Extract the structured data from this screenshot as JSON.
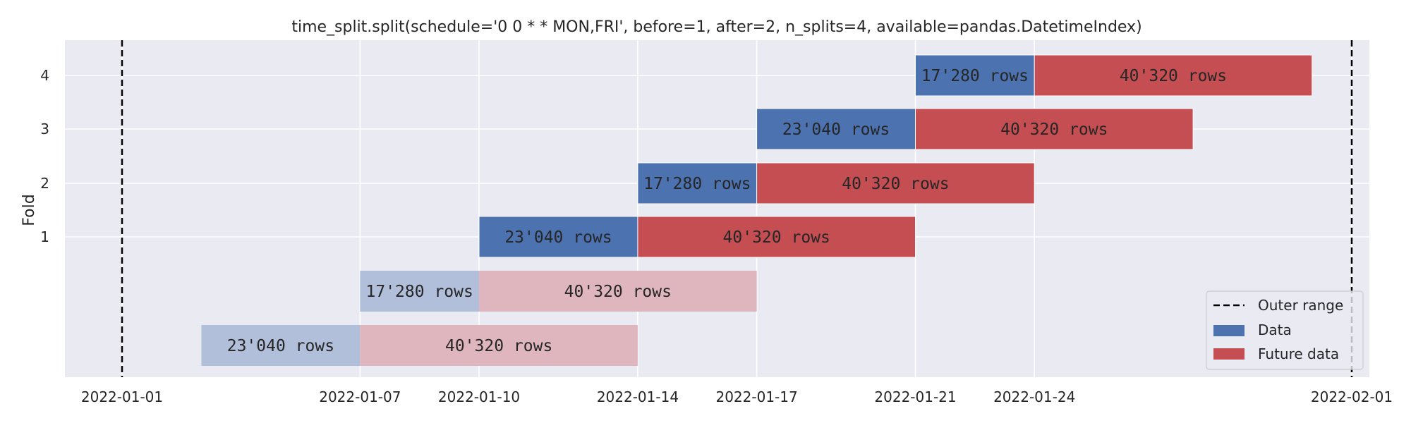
{
  "chart_data": {
    "type": "bar",
    "orientation": "horizontal-timeline",
    "title": "time_split.split(schedule='0 0 * * MON,FRI', before=1, after=2, n_splits=4, available=pandas.DatetimeIndex)",
    "xlabel": "",
    "ylabel": "Fold",
    "x_ticks": [
      "2022-01-01",
      "2022-01-07",
      "2022-01-10",
      "2022-01-14",
      "2022-01-17",
      "2022-01-21",
      "2022-01-24",
      "2022-02-01"
    ],
    "y_ticks": [
      "1",
      "2",
      "3",
      "4"
    ],
    "outer_range": [
      "2022-01-01",
      "2022-02-01"
    ],
    "rows": [
      {
        "fold": "",
        "faded": true,
        "data": {
          "start": "2022-01-03",
          "end": "2022-01-07",
          "label": "23'040 rows"
        },
        "future": {
          "start": "2022-01-07",
          "end": "2022-01-14",
          "label": "40'320 rows"
        }
      },
      {
        "fold": "",
        "faded": true,
        "data": {
          "start": "2022-01-07",
          "end": "2022-01-10",
          "label": "17'280 rows"
        },
        "future": {
          "start": "2022-01-10",
          "end": "2022-01-17",
          "label": "40'320 rows"
        }
      },
      {
        "fold": "1",
        "faded": false,
        "data": {
          "start": "2022-01-10",
          "end": "2022-01-14",
          "label": "23'040 rows"
        },
        "future": {
          "start": "2022-01-14",
          "end": "2022-01-21",
          "label": "40'320 rows"
        }
      },
      {
        "fold": "2",
        "faded": false,
        "data": {
          "start": "2022-01-14",
          "end": "2022-01-17",
          "label": "17'280 rows"
        },
        "future": {
          "start": "2022-01-17",
          "end": "2022-01-24",
          "label": "40'320 rows"
        }
      },
      {
        "fold": "3",
        "faded": false,
        "data": {
          "start": "2022-01-17",
          "end": "2022-01-21",
          "label": "23'040 rows"
        },
        "future": {
          "start": "2022-01-21",
          "end": "2022-01-28",
          "label": "40'320 rows"
        }
      },
      {
        "fold": "4",
        "faded": false,
        "data": {
          "start": "2022-01-21",
          "end": "2022-01-24",
          "label": "17'280 rows"
        },
        "future": {
          "start": "2022-01-24",
          "end": "2022-01-31",
          "label": "40'320 rows"
        }
      }
    ],
    "legend": {
      "placement": "bottom-right",
      "entries": [
        {
          "label": "Outer range",
          "style": "dashed-line",
          "color": "#000000"
        },
        {
          "label": "Data",
          "style": "patch",
          "color": "#4c72b0"
        },
        {
          "label": "Future data",
          "style": "patch",
          "color": "#c44e52"
        }
      ]
    },
    "colors": {
      "data": "#4c72b0",
      "future": "#c44e52",
      "data_faded": "#b1bfda",
      "future_faded": "#dfb5be",
      "axes_bg": "#eaeaf2",
      "grid": "#ffffff"
    },
    "grid": true
  }
}
